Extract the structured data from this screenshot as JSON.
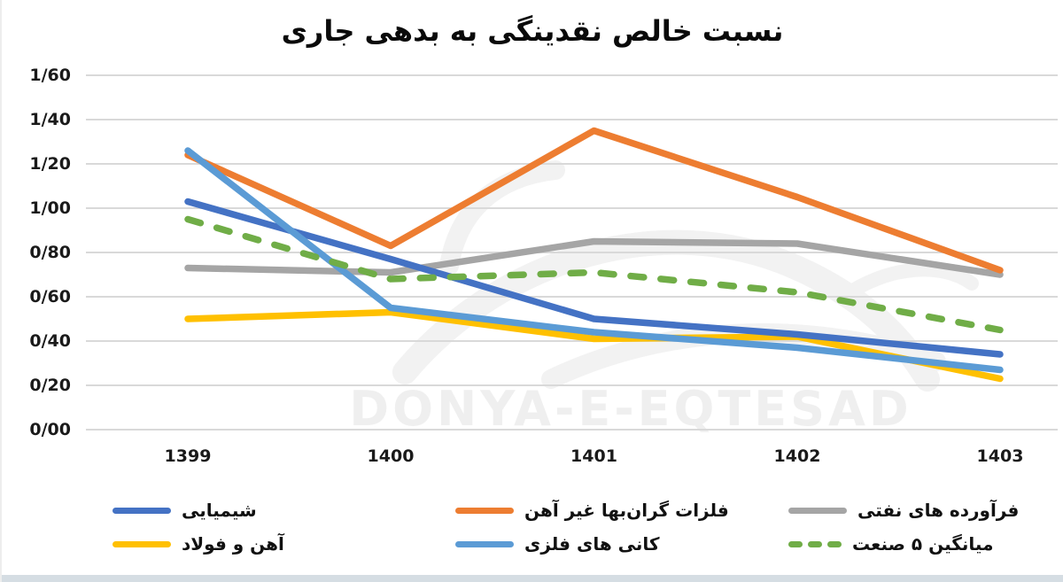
{
  "title": "نسبت خالص نقدینگی به بدهی جاری",
  "watermark": "DONYA-E-EQTESAD",
  "chart_data": {
    "type": "line",
    "title": "نسبت خالص نقدینگی به بدهی جاری",
    "categories": [
      "1399",
      "1400",
      "1401",
      "1402",
      "1403"
    ],
    "y_ticks": [
      "1/60",
      "1/40",
      "1/20",
      "1/00",
      "0/80",
      "0/60",
      "0/40",
      "0/20",
      "0/00"
    ],
    "y_tick_values": [
      1.6,
      1.4,
      1.2,
      1.0,
      0.8,
      0.6,
      0.4,
      0.2,
      0.0
    ],
    "ylim": [
      0,
      1.6
    ],
    "grid": true,
    "grid_color": "#D9D9D9",
    "legend_position": "bottom",
    "series": [
      {
        "key": "chemical",
        "name": "شیمیایی",
        "color": "#4472C4",
        "dash": false,
        "values": [
          1.03,
          0.77,
          0.5,
          0.43,
          0.34
        ]
      },
      {
        "key": "precious-non-ferrous-metals",
        "name": "فلزات گران‌بها غیر آهن",
        "color": "#ED7D31",
        "dash": false,
        "values": [
          1.24,
          0.83,
          1.35,
          1.05,
          0.72
        ]
      },
      {
        "key": "oil-products",
        "name": "فرآورده های نفتی",
        "color": "#A5A5A5",
        "dash": false,
        "values": [
          0.73,
          0.71,
          0.85,
          0.84,
          0.7
        ]
      },
      {
        "key": "iron-and-steel",
        "name": "آهن و فولاد",
        "color": "#FFC000",
        "dash": false,
        "values": [
          0.5,
          0.53,
          0.41,
          0.42,
          0.23
        ]
      },
      {
        "key": "metal-ores",
        "name": "کانی های فلزی",
        "color": "#5B9BD5",
        "dash": false,
        "values": [
          1.26,
          0.55,
          0.44,
          0.37,
          0.27
        ]
      },
      {
        "key": "industry-average-5",
        "name": "میانگین ۵ صنعت",
        "color": "#70AD47",
        "dash": true,
        "values": [
          0.95,
          0.68,
          0.71,
          0.62,
          0.45
        ]
      }
    ]
  }
}
